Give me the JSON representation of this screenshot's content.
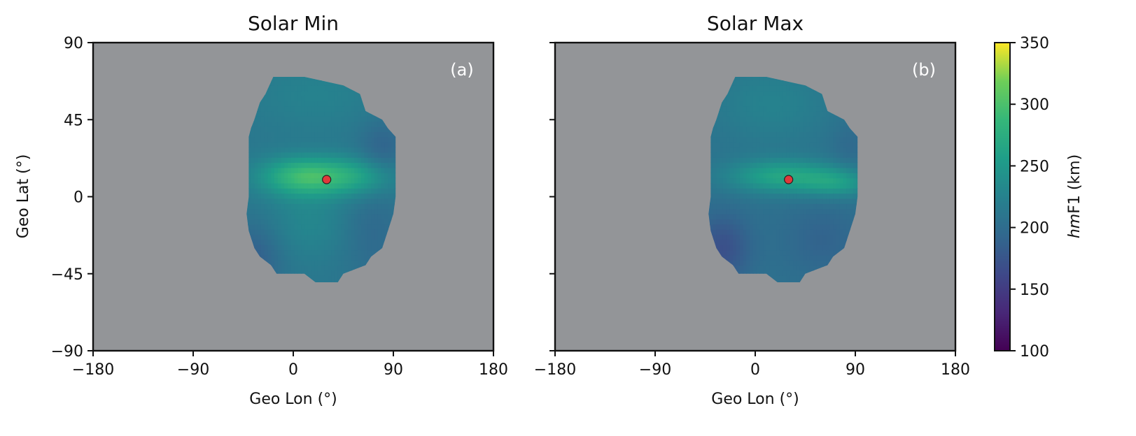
{
  "chart_data": [
    {
      "type": "heatmap",
      "title": "Solar Min",
      "panel_label": "(a)",
      "xlabel": "Geo Lon (°)",
      "ylabel": "Geo Lat (°)",
      "xlim": [
        -180,
        180
      ],
      "ylim": [
        -90,
        90
      ],
      "xticks": [
        -180,
        -90,
        0,
        90,
        180
      ],
      "yticks": [
        -90,
        -45,
        0,
        45,
        90
      ],
      "xtick_labels": [
        "−180",
        "−90",
        "0",
        "90",
        "180"
      ],
      "ytick_labels": [
        "−90",
        "−45",
        "0",
        "45",
        "90"
      ],
      "background_color": "#939598",
      "coverage_outline_lonlat": [
        [
          -18,
          70
        ],
        [
          10,
          70
        ],
        [
          45,
          65
        ],
        [
          60,
          60
        ],
        [
          65,
          50
        ],
        [
          80,
          45
        ],
        [
          85,
          40
        ],
        [
          92,
          35
        ],
        [
          92,
          0
        ],
        [
          90,
          -10
        ],
        [
          85,
          -20
        ],
        [
          80,
          -30
        ],
        [
          70,
          -35
        ],
        [
          65,
          -40
        ],
        [
          45,
          -45
        ],
        [
          40,
          -50
        ],
        [
          20,
          -50
        ],
        [
          10,
          -45
        ],
        [
          -15,
          -45
        ],
        [
          -20,
          -40
        ],
        [
          -30,
          -35
        ],
        [
          -35,
          -30
        ],
        [
          -40,
          -20
        ],
        [
          -42,
          -10
        ],
        [
          -40,
          0
        ],
        [
          -40,
          35
        ],
        [
          -38,
          40
        ],
        [
          -35,
          45
        ],
        [
          -30,
          55
        ],
        [
          -25,
          60
        ]
      ],
      "field_components": [
        {
          "lon": 10,
          "lat": 12,
          "value": 290,
          "sigma_lon": 28,
          "sigma_lat": 8
        },
        {
          "lon": 60,
          "lat": 12,
          "value": 255,
          "sigma_lon": 25,
          "sigma_lat": 8
        },
        {
          "lon": 15,
          "lat": -15,
          "value": 230,
          "sigma_lon": 30,
          "sigma_lat": 15
        },
        {
          "lon": 20,
          "lat": 60,
          "value": 225,
          "sigma_lon": 40,
          "sigma_lat": 15
        },
        {
          "lon": -35,
          "lat": -35,
          "value": 185,
          "sigma_lon": 18,
          "sigma_lat": 15
        },
        {
          "lon": 80,
          "lat": 28,
          "value": 190,
          "sigma_lon": 15,
          "sigma_lat": 12
        },
        {
          "lon": 70,
          "lat": -20,
          "value": 195,
          "sigma_lon": 20,
          "sigma_lat": 20
        }
      ],
      "field_base_value": 212,
      "marker": {
        "lon": 30,
        "lat": 10,
        "color": "#e0393a"
      }
    },
    {
      "type": "heatmap",
      "title": "Solar Max",
      "panel_label": "(b)",
      "xlabel": "Geo Lon (°)",
      "ylabel": "",
      "xlim": [
        -180,
        180
      ],
      "ylim": [
        -90,
        90
      ],
      "xticks": [
        -180,
        -90,
        0,
        90,
        180
      ],
      "yticks": [
        -90,
        -45,
        0,
        45,
        90
      ],
      "xtick_labels": [
        "−180",
        "−90",
        "0",
        "90",
        "180"
      ],
      "ytick_labels": [],
      "background_color": "#939598",
      "coverage_outline_lonlat": [
        [
          -18,
          70
        ],
        [
          10,
          70
        ],
        [
          45,
          65
        ],
        [
          60,
          60
        ],
        [
          65,
          50
        ],
        [
          80,
          45
        ],
        [
          85,
          40
        ],
        [
          92,
          35
        ],
        [
          92,
          0
        ],
        [
          90,
          -10
        ],
        [
          85,
          -20
        ],
        [
          80,
          -30
        ],
        [
          70,
          -35
        ],
        [
          65,
          -40
        ],
        [
          45,
          -45
        ],
        [
          40,
          -50
        ],
        [
          20,
          -50
        ],
        [
          10,
          -45
        ],
        [
          -15,
          -45
        ],
        [
          -20,
          -40
        ],
        [
          -30,
          -35
        ],
        [
          -35,
          -30
        ],
        [
          -40,
          -20
        ],
        [
          -42,
          -10
        ],
        [
          -40,
          0
        ],
        [
          -40,
          35
        ],
        [
          -38,
          40
        ],
        [
          -35,
          45
        ],
        [
          -30,
          55
        ],
        [
          -25,
          60
        ]
      ],
      "field_components": [
        {
          "lon": 25,
          "lat": 12,
          "value": 265,
          "sigma_lon": 35,
          "sigma_lat": 7
        },
        {
          "lon": 75,
          "lat": 8,
          "value": 245,
          "sigma_lon": 22,
          "sigma_lat": 6
        },
        {
          "lon": 15,
          "lat": 55,
          "value": 225,
          "sigma_lon": 40,
          "sigma_lat": 18
        },
        {
          "lon": -30,
          "lat": -30,
          "value": 170,
          "sigma_lon": 18,
          "sigma_lat": 14
        },
        {
          "lon": 60,
          "lat": -25,
          "value": 190,
          "sigma_lon": 25,
          "sigma_lat": 15
        },
        {
          "lon": 85,
          "lat": 30,
          "value": 195,
          "sigma_lon": 12,
          "sigma_lat": 10
        }
      ],
      "field_base_value": 205,
      "marker": {
        "lon": 30,
        "lat": 10,
        "color": "#e0393a"
      }
    }
  ],
  "colorbar": {
    "label_italic": "hm",
    "label_rest": "F1 (km)",
    "vmin": 100,
    "vmax": 350,
    "ticks": [
      100,
      150,
      200,
      250,
      300,
      350
    ],
    "tick_labels": [
      "100",
      "150",
      "200",
      "250",
      "300",
      "350"
    ],
    "colormap": "viridis"
  }
}
